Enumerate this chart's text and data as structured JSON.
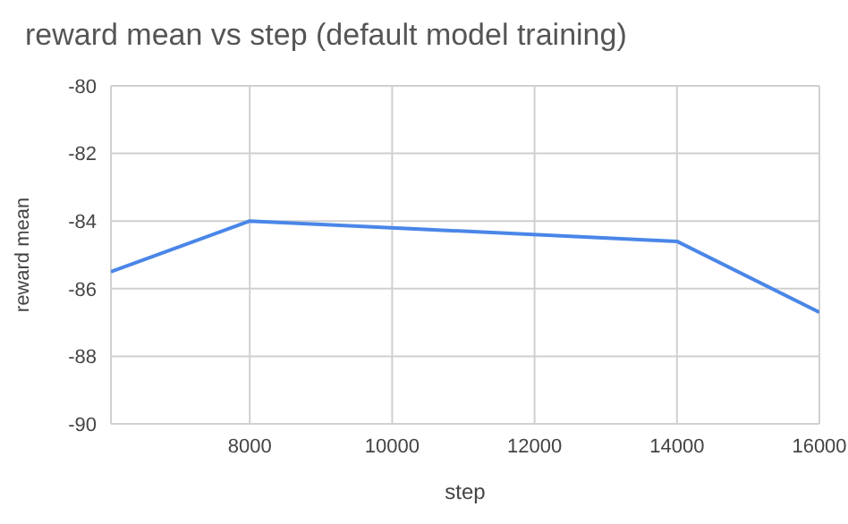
{
  "chart_data": {
    "type": "line",
    "title": "reward mean vs step (default model training)",
    "xlabel": "step",
    "ylabel": "reward mean",
    "x": [
      6050,
      8000,
      14000,
      16000
    ],
    "series": [
      {
        "color": "#4a86e8",
        "values": [
          -85.5,
          -84.0,
          -84.6,
          -86.7
        ]
      }
    ],
    "xlim": [
      6050,
      16000
    ],
    "xticks": [
      8000,
      10000,
      12000,
      14000,
      16000
    ],
    "ylim": [
      -90,
      -80
    ],
    "yticks": [
      -90,
      -88,
      -86,
      -84,
      -82,
      -80
    ],
    "grid": true,
    "legend": false,
    "marker": "none",
    "line_style": "solid"
  }
}
